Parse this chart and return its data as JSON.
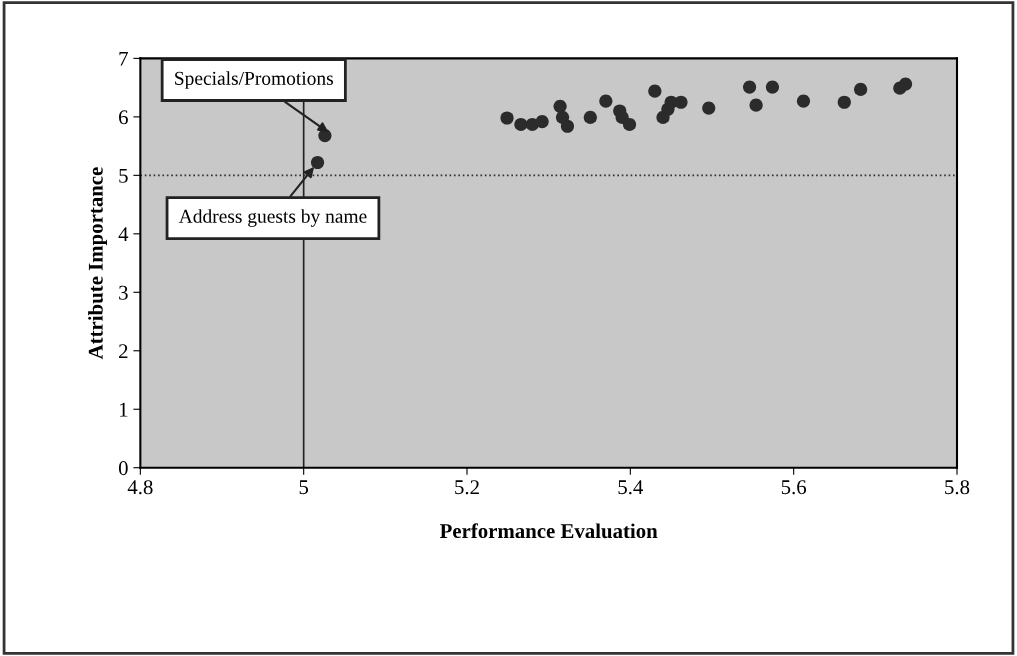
{
  "chart_data": {
    "type": "scatter",
    "xlabel": "Performance Evaluation",
    "ylabel": "Attribute Importance",
    "x": [
      5.017,
      5.026,
      5.249,
      5.266,
      5.28,
      5.292,
      5.314,
      5.317,
      5.323,
      5.351,
      5.37,
      5.387,
      5.39,
      5.399,
      5.43,
      5.44,
      5.446,
      5.45,
      5.462,
      5.496,
      5.546,
      5.554,
      5.574,
      5.612,
      5.662,
      5.682,
      5.73,
      5.737
    ],
    "values": [
      5.22,
      5.68,
      5.98,
      5.87,
      5.87,
      5.92,
      6.18,
      5.99,
      5.84,
      5.99,
      6.27,
      6.1,
      5.99,
      5.87,
      6.44,
      5.99,
      6.13,
      6.25,
      6.25,
      6.15,
      6.51,
      6.2,
      6.51,
      6.27,
      6.25,
      6.47,
      6.49,
      6.56
    ],
    "color": "#2b2b2b",
    "marker": "circle",
    "xlim": [
      4.8,
      5.8
    ],
    "xticks": [
      4.8,
      5,
      5.2,
      5.4,
      5.6,
      5.8
    ],
    "ylim": [
      0,
      7
    ],
    "yticks": [
      0,
      1,
      2,
      3,
      4,
      5,
      6,
      7
    ],
    "ref_lines": [
      {
        "axis": "x",
        "value": 5,
        "line_style": "solid",
        "color": "#222222"
      },
      {
        "axis": "y",
        "value": 5,
        "line_style": "dotted",
        "color": "#333333"
      }
    ],
    "annotations": [
      {
        "text": "Specials/Promotions",
        "x": 5.026,
        "y": 5.68
      },
      {
        "text": "Address guests by name",
        "x": 5.017,
        "y": 5.22
      }
    ],
    "grid": false,
    "legend": false
  }
}
